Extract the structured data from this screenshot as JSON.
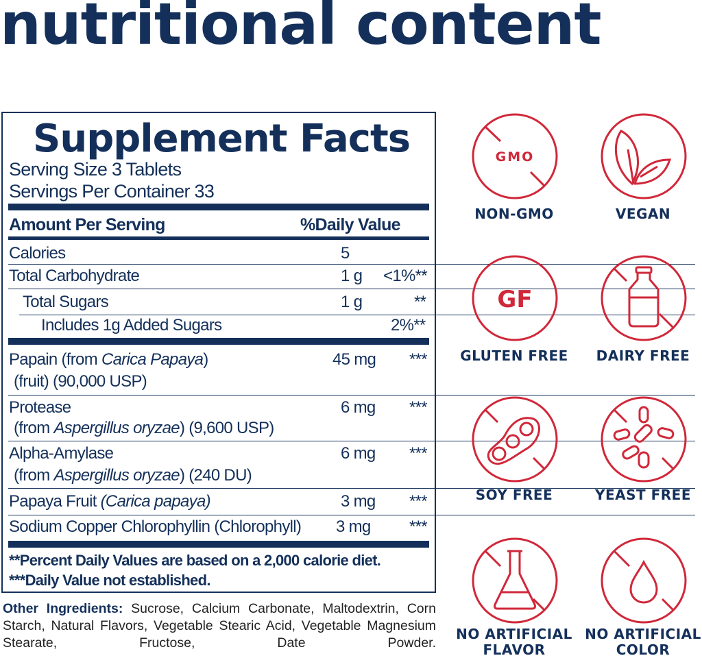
{
  "heading": "nutritional content",
  "label": {
    "title": "Supplement Facts",
    "serving_size": "Serving Size 3 Tablets",
    "servings_per_container": "Servings Per Container 33",
    "amount_header": "Amount Per Serving",
    "dv_header": "%Daily Value",
    "rows": [
      {
        "name": "Calories",
        "amount": "5",
        "dv": ""
      },
      {
        "name": "Total Carbohydrate",
        "amount": "1 g",
        "dv": "<1%**"
      },
      {
        "name": "Total Sugars",
        "amount": "1 g",
        "dv": "**"
      },
      {
        "name": "Includes 1g Added Sugars",
        "amount": "",
        "dv": "2%**"
      },
      {
        "name": "Papain (from ",
        "italic": "Carica Papaya",
        "name_end": ")",
        "line2": "(fruit) (90,000 USP)",
        "amount": "45 mg",
        "dv": "***"
      },
      {
        "name": "Protease",
        "line2_pre": "(from ",
        "italic": "Aspergillus oryzae",
        "line2_post": ") (9,600 USP)",
        "amount": "6 mg",
        "dv": "***"
      },
      {
        "name": "Alpha-Amylase",
        "line2_pre": "(from ",
        "italic": "Aspergillus oryzae",
        "line2_post": ") (240 DU)",
        "amount": "6 mg",
        "dv": "***"
      },
      {
        "name": "Papaya Fruit ",
        "italic": "(Carica papaya)",
        "amount": "3 mg",
        "dv": "***"
      },
      {
        "name": "Sodium Copper Chlorophyllin (Chlorophyll)",
        "amount": "3 mg",
        "dv": "***"
      }
    ],
    "footnote1": "**Percent Daily Values are based on a 2,000 calorie diet.",
    "footnote2": "***Daily Value not established."
  },
  "other_ingredients": {
    "label": "Other Ingredients:",
    "text": " Sucrose, Calcium Carbonate, Maltodextrin, Corn Starch, Natural Flavors, Vegetable Stearic Acid, Vegetable Magnesium Stearate, Fructose, Date Powder."
  },
  "badges": [
    {
      "label": "NON-GMO",
      "icon": "gmo-crossed-icon",
      "icon_text": "GMO"
    },
    {
      "label": "VEGAN",
      "icon": "leaves-icon"
    },
    {
      "label": "GLUTEN FREE",
      "icon": "gf-icon",
      "icon_text": "GF"
    },
    {
      "label": "DAIRY FREE",
      "icon": "milk-bottle-crossed-icon"
    },
    {
      "label": "SOY FREE",
      "icon": "soybean-crossed-icon"
    },
    {
      "label": "YEAST FREE",
      "icon": "yeast-crossed-icon"
    },
    {
      "label_line1": "NO ARTIFICIAL",
      "label_line2": "FLAVOR",
      "icon": "flask-crossed-icon"
    },
    {
      "label_line1": "NO ARTIFICIAL",
      "label_line2": "COLOR",
      "icon": "drop-crossed-icon"
    }
  ],
  "colors": {
    "navy": "#14305a",
    "red": "#d0283a"
  }
}
